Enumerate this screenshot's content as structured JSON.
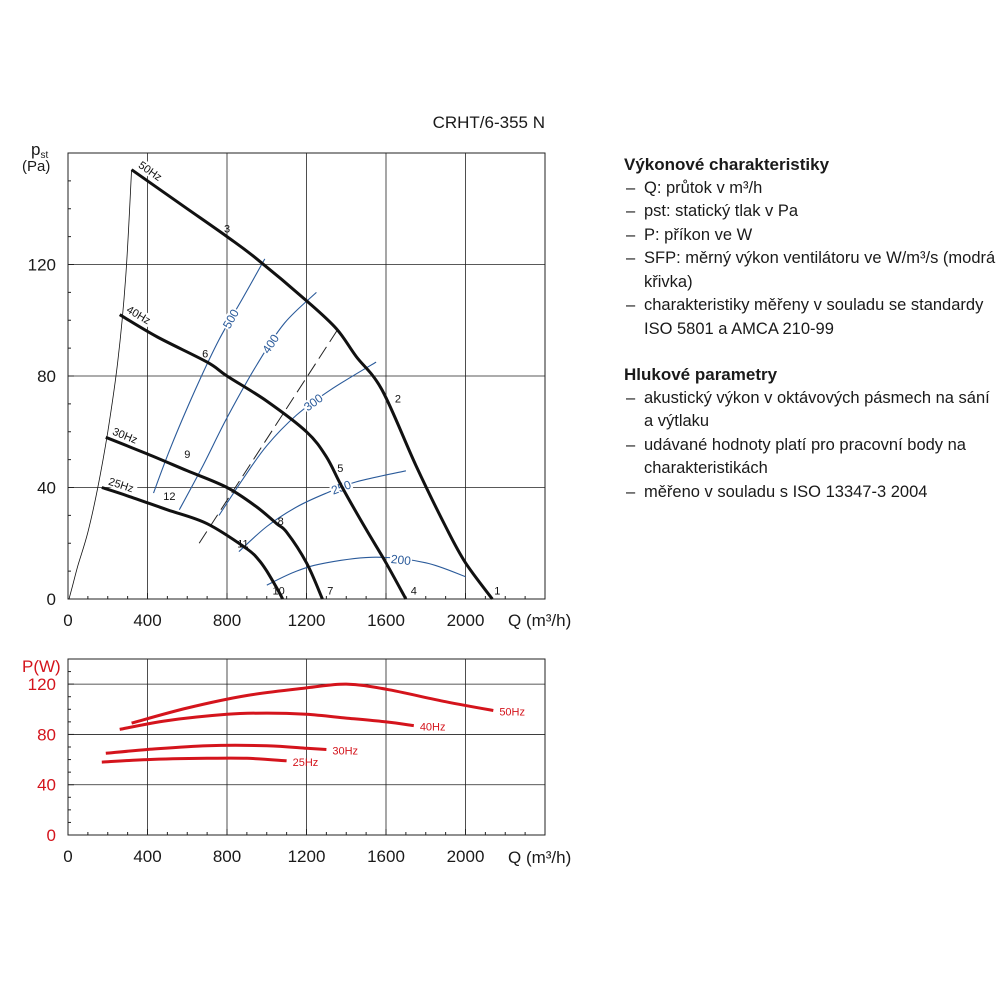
{
  "model": "CRHT/6-355 N",
  "legend": {
    "performance": {
      "heading": "Výkonové charakteristiky",
      "items": [
        "Q: průtok v m³/h",
        "pst: statický tlak v Pa",
        "P: příkon ve W",
        "SFP: měrný výkon ventilátoru ve W/m³/s (modrá křivka)",
        "charakteristiky měřeny v souladu se standardy ISO 5801 a AMCA 210-99"
      ]
    },
    "noise": {
      "heading": "Hlukové parametry",
      "items": [
        "akustický výkon v oktávových pásmech na sání a výtlaku",
        "udávané hodnoty platí pro pracovní body na charakteristikách",
        "měřeno v souladu s ISO 13347-3 2004"
      ]
    }
  },
  "colors": {
    "pressure": "#111111",
    "sfp": "#2a5a9a",
    "power": "#d4141c",
    "grid": "#222222"
  },
  "chart_data": [
    {
      "type": "line",
      "ylabel": "pst",
      "yunit": "(Pa)",
      "xlabel": "Q (m³/h)",
      "xlim": [
        0,
        2400
      ],
      "ylim": [
        0,
        160
      ],
      "xticks": [
        0,
        400,
        800,
        1200,
        1600,
        2000
      ],
      "yticks": [
        0,
        40,
        80,
        120
      ],
      "grid": true,
      "series": [
        {
          "name": "50Hz",
          "points": [
            [
              320,
              154
            ],
            [
              600,
              140
            ],
            [
              800,
              130
            ],
            [
              950,
              122
            ],
            [
              1200,
              107
            ],
            [
              1350,
              97
            ],
            [
              1450,
              87
            ],
            [
              1580,
              75
            ],
            [
              1750,
              48
            ],
            [
              1900,
              26
            ],
            [
              2000,
              13
            ],
            [
              2135,
              0
            ]
          ]
        },
        {
          "name": "40Hz",
          "points": [
            [
              260,
              102
            ],
            [
              450,
              94
            ],
            [
              700,
              85
            ],
            [
              800,
              80
            ],
            [
              1000,
              71
            ],
            [
              1200,
              60
            ],
            [
              1300,
              51
            ],
            [
              1380,
              40
            ],
            [
              1500,
              25
            ],
            [
              1600,
              13
            ],
            [
              1700,
              0
            ]
          ]
        },
        {
          "name": "30Hz",
          "points": [
            [
              190,
              58
            ],
            [
              400,
              52
            ],
            [
              600,
              46
            ],
            [
              800,
              40
            ],
            [
              950,
              33
            ],
            [
              1050,
              27
            ],
            [
              1100,
              24
            ],
            [
              1200,
              13
            ],
            [
              1280,
              0
            ]
          ]
        },
        {
          "name": "25Hz",
          "points": [
            [
              170,
              40
            ],
            [
              300,
              37
            ],
            [
              500,
              32
            ],
            [
              700,
              27
            ],
            [
              900,
              18
            ],
            [
              960,
              14
            ],
            [
              1000,
              10
            ],
            [
              1050,
              4
            ],
            [
              1080,
              0
            ]
          ]
        }
      ],
      "bare_curve": [
        [
          5,
          0
        ],
        [
          20,
          4
        ],
        [
          50,
          12
        ],
        [
          100,
          24
        ],
        [
          150,
          40
        ],
        [
          200,
          60
        ],
        [
          250,
          85
        ],
        [
          290,
          115
        ],
        [
          320,
          154
        ]
      ],
      "sfp_curves": [
        {
          "label": "500",
          "points": [
            [
              430,
              38
            ],
            [
              520,
              55
            ],
            [
              640,
              75
            ],
            [
              760,
              93
            ],
            [
              880,
              108
            ],
            [
              990,
              122
            ]
          ]
        },
        {
          "label": "400",
          "points": [
            [
              560,
              32
            ],
            [
              680,
              48
            ],
            [
              800,
              65
            ],
            [
              950,
              84
            ],
            [
              1090,
              99
            ],
            [
              1250,
              110
            ]
          ]
        },
        {
          "label": "300",
          "points": [
            [
              760,
              30
            ],
            [
              880,
              43
            ],
            [
              1000,
              55
            ],
            [
              1150,
              66
            ],
            [
              1320,
              75
            ],
            [
              1550,
              85
            ]
          ]
        },
        {
          "label": "250",
          "points": [
            [
              860,
              17
            ],
            [
              1000,
              26
            ],
            [
              1150,
              33
            ],
            [
              1300,
              38
            ],
            [
              1450,
              42
            ],
            [
              1700,
              46
            ]
          ]
        },
        {
          "label": "200",
          "points": [
            [
              1000,
              5
            ],
            [
              1150,
              10
            ],
            [
              1300,
              13
            ],
            [
              1550,
              15
            ],
            [
              1800,
              13
            ],
            [
              2000,
              8
            ]
          ]
        }
      ],
      "dashed_line": {
        "points": [
          [
            660,
            20
          ],
          [
            1360,
            97
          ]
        ]
      },
      "operating_points": [
        {
          "label": "1",
          "x": 2160,
          "y": 3
        },
        {
          "label": "2",
          "x": 1660,
          "y": 72
        },
        {
          "label": "3",
          "x": 800,
          "y": 133
        },
        {
          "label": "4",
          "x": 1740,
          "y": 3
        },
        {
          "label": "5",
          "x": 1370,
          "y": 47
        },
        {
          "label": "6",
          "x": 690,
          "y": 88
        },
        {
          "label": "7",
          "x": 1320,
          "y": 3
        },
        {
          "label": "8",
          "x": 1070,
          "y": 28
        },
        {
          "label": "9",
          "x": 600,
          "y": 52
        },
        {
          "label": "10",
          "x": 1060,
          "y": 3
        },
        {
          "label": "11",
          "x": 880,
          "y": 20
        },
        {
          "label": "12",
          "x": 510,
          "y": 37
        }
      ]
    },
    {
      "type": "line",
      "ylabel": "P(W)",
      "xlabel": "Q (m³/h)",
      "xlim": [
        0,
        2400
      ],
      "ylim": [
        0,
        140
      ],
      "xticks": [
        0,
        400,
        800,
        1200,
        1600,
        2000
      ],
      "yticks": [
        0,
        40,
        80,
        120
      ],
      "grid": true,
      "series": [
        {
          "name": "50Hz",
          "points": [
            [
              320,
              89
            ],
            [
              600,
              101
            ],
            [
              900,
              111
            ],
            [
              1200,
              117
            ],
            [
              1400,
              120
            ],
            [
              1600,
              116
            ],
            [
              1900,
              106
            ],
            [
              2140,
              99
            ]
          ]
        },
        {
          "name": "40Hz",
          "points": [
            [
              260,
              84
            ],
            [
              500,
              91
            ],
            [
              800,
              96
            ],
            [
              1000,
              97
            ],
            [
              1200,
              96
            ],
            [
              1400,
              93
            ],
            [
              1600,
              90
            ],
            [
              1740,
              87
            ]
          ]
        },
        {
          "name": "30Hz",
          "points": [
            [
              190,
              65
            ],
            [
              400,
              68
            ],
            [
              700,
              71
            ],
            [
              1000,
              71
            ],
            [
              1200,
              69
            ],
            [
              1300,
              68
            ]
          ]
        },
        {
          "name": "25Hz",
          "points": [
            [
              170,
              58
            ],
            [
              400,
              60
            ],
            [
              700,
              61
            ],
            [
              900,
              61
            ],
            [
              1100,
              59
            ]
          ]
        }
      ]
    }
  ]
}
